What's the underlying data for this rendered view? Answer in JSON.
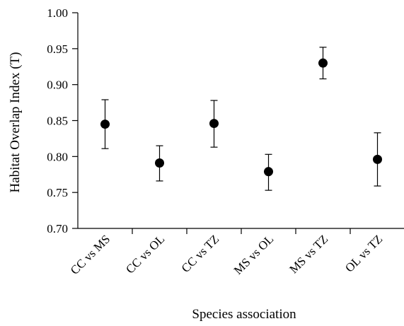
{
  "chart_data": {
    "type": "scatter",
    "xlabel": "Species association",
    "ylabel": "Habitat Overlap Index (T)",
    "ylim": [
      0.7,
      1.0
    ],
    "yticks": [
      "0.70",
      "0.75",
      "0.80",
      "0.85",
      "0.90",
      "0.95",
      "1.00"
    ],
    "categories": [
      "CC vs MS",
      "CC vs OL",
      "CC vs TZ",
      "MS vs OL",
      "MS vs TZ",
      "OL vs TZ"
    ],
    "values": [
      0.845,
      0.791,
      0.846,
      0.779,
      0.93,
      0.796
    ],
    "error_low": [
      0.811,
      0.766,
      0.813,
      0.753,
      0.908,
      0.759
    ],
    "error_high": [
      0.879,
      0.815,
      0.878,
      0.803,
      0.952,
      0.833
    ],
    "grid": false,
    "error_bars": true
  }
}
